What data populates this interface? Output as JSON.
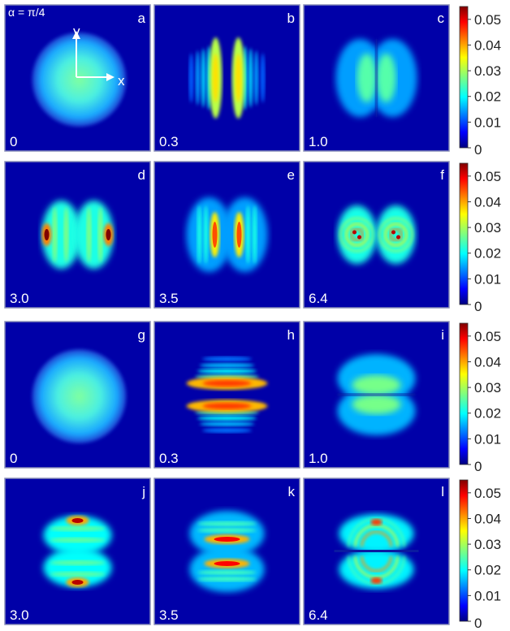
{
  "figure": {
    "alpha_label": "α = π/4",
    "axis_y": "y",
    "axis_x": "x"
  },
  "chart_data": {
    "type": "heatmap",
    "colormap": "jet",
    "colorbar": {
      "min": 0,
      "max": 0.055,
      "ticks": [
        0,
        0.01,
        0.02,
        0.03,
        0.04,
        0.05
      ],
      "tick_labels": [
        "0",
        "0.01",
        "0.02",
        "0.03",
        "0.04",
        "0.05"
      ]
    },
    "panels": [
      {
        "letter": "a",
        "time": "0",
        "pattern": "disk",
        "peak": 0.027
      },
      {
        "letter": "b",
        "time": "0.3",
        "pattern": "v-fringes",
        "peak": 0.036
      },
      {
        "letter": "c",
        "time": "1.0",
        "pattern": "v-split",
        "peak": 0.028
      },
      {
        "letter": "d",
        "time": "3.0",
        "pattern": "v-edge",
        "peak": 0.055
      },
      {
        "letter": "e",
        "time": "3.5",
        "pattern": "v-inner",
        "peak": 0.044
      },
      {
        "letter": "f",
        "time": "6.4",
        "pattern": "v-vortex",
        "peak": 0.052
      },
      {
        "letter": "g",
        "time": "0",
        "pattern": "disk",
        "peak": 0.027
      },
      {
        "letter": "h",
        "time": "0.3",
        "pattern": "h-fringes",
        "peak": 0.045
      },
      {
        "letter": "i",
        "time": "1.0",
        "pattern": "h-split",
        "peak": 0.03
      },
      {
        "letter": "j",
        "time": "3.0",
        "pattern": "h-edge",
        "peak": 0.052
      },
      {
        "letter": "k",
        "time": "3.5",
        "pattern": "h-inner",
        "peak": 0.048
      },
      {
        "letter": "l",
        "time": "6.4",
        "pattern": "h-arcs",
        "peak": 0.05
      }
    ]
  }
}
